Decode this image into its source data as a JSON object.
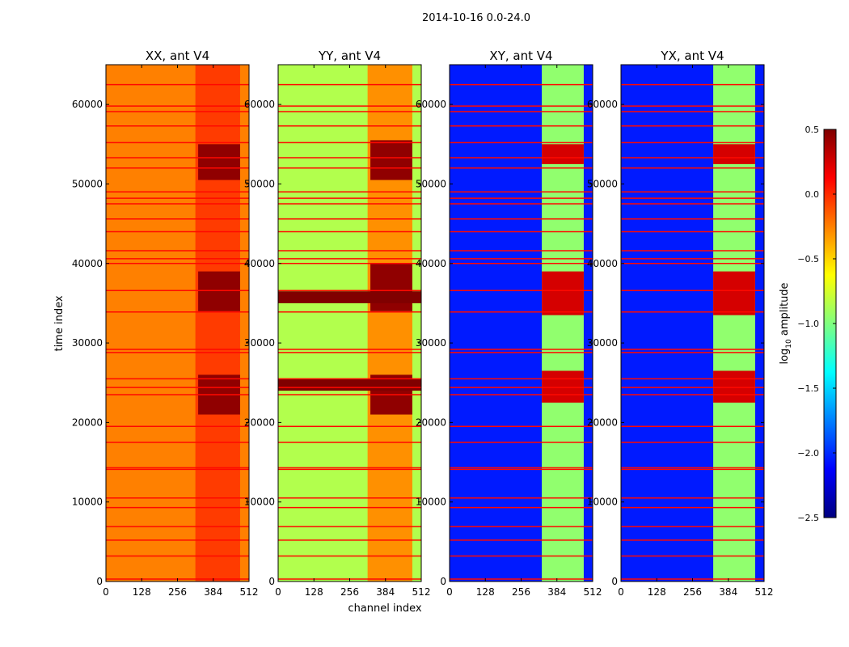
{
  "chart_data": {
    "type": "heatmap",
    "suptitle": "2014-10-16 0.0-24.0",
    "xlabel": "channel index",
    "ylabel": "time index",
    "x_ticks": [
      0,
      128,
      256,
      384,
      512
    ],
    "y_ticks": [
      0,
      10000,
      20000,
      30000,
      40000,
      50000,
      60000
    ],
    "xlim": [
      0,
      512
    ],
    "ylim": [
      0,
      65000
    ],
    "colormap": "jet",
    "colorbar": {
      "label": "log10 amplitude",
      "label_main": "log",
      "label_sub": "10",
      "label_rest": " amplitude",
      "range": [
        -2.5,
        0.5
      ],
      "ticks": [
        0.5,
        0.0,
        -0.5,
        -1.0,
        -1.5,
        -2.0,
        -2.5
      ],
      "tick_labels": [
        "0.5",
        "0.0",
        "−0.5",
        "−1.0",
        "−1.5",
        "−2.0",
        "−2.5"
      ]
    },
    "flagged_rows_time": [
      300,
      3200,
      5200,
      6900,
      9300,
      10500,
      14100,
      14300,
      17500,
      19500,
      23500,
      24400,
      25500,
      28800,
      29200,
      33900,
      36600,
      40000,
      40600,
      41600,
      44000,
      45600,
      47500,
      48200,
      49000,
      52000,
      53300,
      55200,
      57300,
      59100,
      59800,
      62500
    ],
    "panels": [
      {
        "title": "XX, ant V4",
        "base_value": -0.25,
        "band_channels": [
          [
            320,
            480
          ]
        ],
        "band_value": -0.05,
        "saturated_time_ranges": [
          [
            21000,
            26000
          ],
          [
            34000,
            39000
          ],
          [
            50500,
            55000
          ]
        ],
        "saturated_channels": [
          [
            330,
            480
          ]
        ],
        "saturated_value": 0.45
      },
      {
        "title": "YY, ant V4",
        "base_value": -0.85,
        "band_channels": [
          [
            320,
            480
          ]
        ],
        "band_value": -0.3,
        "saturated_time_ranges": [
          [
            21000,
            26000
          ],
          [
            34000,
            40000
          ],
          [
            50500,
            55500
          ]
        ],
        "saturated_channels": [
          [
            330,
            480
          ]
        ],
        "saturated_value": 0.45,
        "full_width_saturated": [
          [
            24000,
            25500
          ],
          [
            35000,
            36500
          ]
        ]
      },
      {
        "title": "XY, ant V4",
        "base_value": -2.05,
        "band_channels": [
          [
            330,
            480
          ]
        ],
        "band_value": -0.95,
        "saturated_time_ranges": [
          [
            22500,
            26500
          ],
          [
            33500,
            39000
          ],
          [
            52500,
            55000
          ]
        ],
        "saturated_channels": [
          [
            330,
            480
          ]
        ],
        "saturated_value": 0.25
      },
      {
        "title": "YX, ant V4",
        "base_value": -2.05,
        "band_channels": [
          [
            330,
            480
          ]
        ],
        "band_value": -0.95,
        "saturated_time_ranges": [
          [
            22500,
            26500
          ],
          [
            33500,
            39000
          ],
          [
            52500,
            55000
          ]
        ],
        "saturated_channels": [
          [
            330,
            480
          ]
        ],
        "saturated_value": 0.25
      }
    ]
  }
}
